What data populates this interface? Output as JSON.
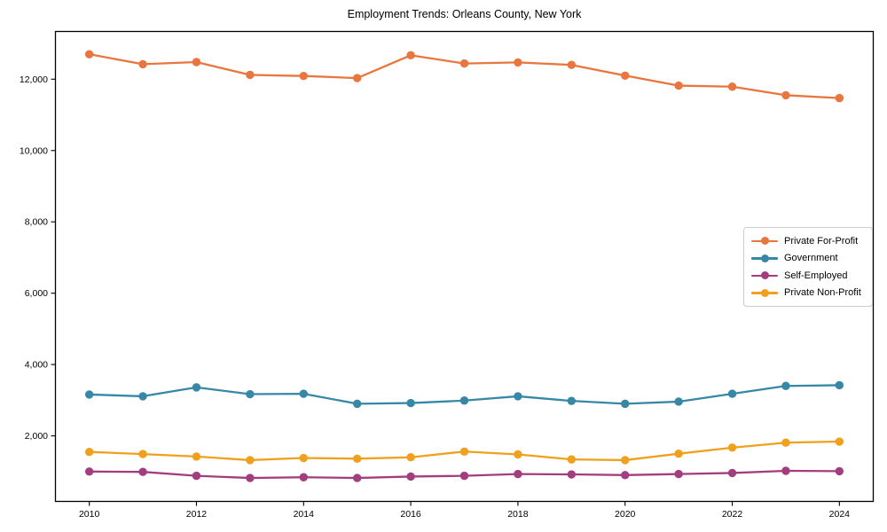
{
  "chart_data": {
    "type": "line",
    "title": "Employment Trends: Orleans County, New York",
    "x": [
      2010,
      2011,
      2012,
      2013,
      2014,
      2015,
      2016,
      2017,
      2018,
      2019,
      2020,
      2021,
      2022,
      2023,
      2024
    ],
    "series": [
      {
        "name": "Private For-Profit",
        "color": "#e8763e",
        "values": [
          12700,
          12420,
          12480,
          12120,
          12090,
          12030,
          12670,
          12440,
          12470,
          12400,
          12100,
          11820,
          11790,
          11550,
          11470
        ]
      },
      {
        "name": "Government",
        "color": "#3787a6",
        "values": [
          3160,
          3110,
          3360,
          3170,
          3180,
          2900,
          2920,
          2990,
          3110,
          2980,
          2900,
          2960,
          3180,
          3400,
          3420
        ]
      },
      {
        "name": "Self-Employed",
        "color": "#a33e7e",
        "values": [
          1000,
          990,
          880,
          820,
          840,
          820,
          860,
          880,
          930,
          920,
          900,
          930,
          960,
          1020,
          1010
        ]
      },
      {
        "name": "Private Non-Profit",
        "color": "#efa01c",
        "values": [
          1550,
          1490,
          1420,
          1320,
          1380,
          1360,
          1400,
          1560,
          1480,
          1340,
          1320,
          1500,
          1670,
          1810,
          1840
        ]
      }
    ],
    "xlabel": "",
    "ylabel": "",
    "xticks": {
      "values": [
        2010,
        2012,
        2014,
        2016,
        2018,
        2020,
        2022,
        2024
      ],
      "labels": [
        "2010",
        "2012",
        "2014",
        "2016",
        "2018",
        "2020",
        "2022",
        "2024"
      ]
    },
    "yticks": {
      "values": [
        2000,
        4000,
        6000,
        8000,
        10000,
        12000
      ],
      "labels": [
        "2,000",
        "4,000",
        "6,000",
        "8,000",
        "10,000",
        "12,000"
      ]
    },
    "xlim": [
      2009.36,
      2024.64
    ],
    "ylim": [
      150,
      13350
    ],
    "grid": false,
    "legend_position": "center-right",
    "frame_color": "#000000"
  }
}
